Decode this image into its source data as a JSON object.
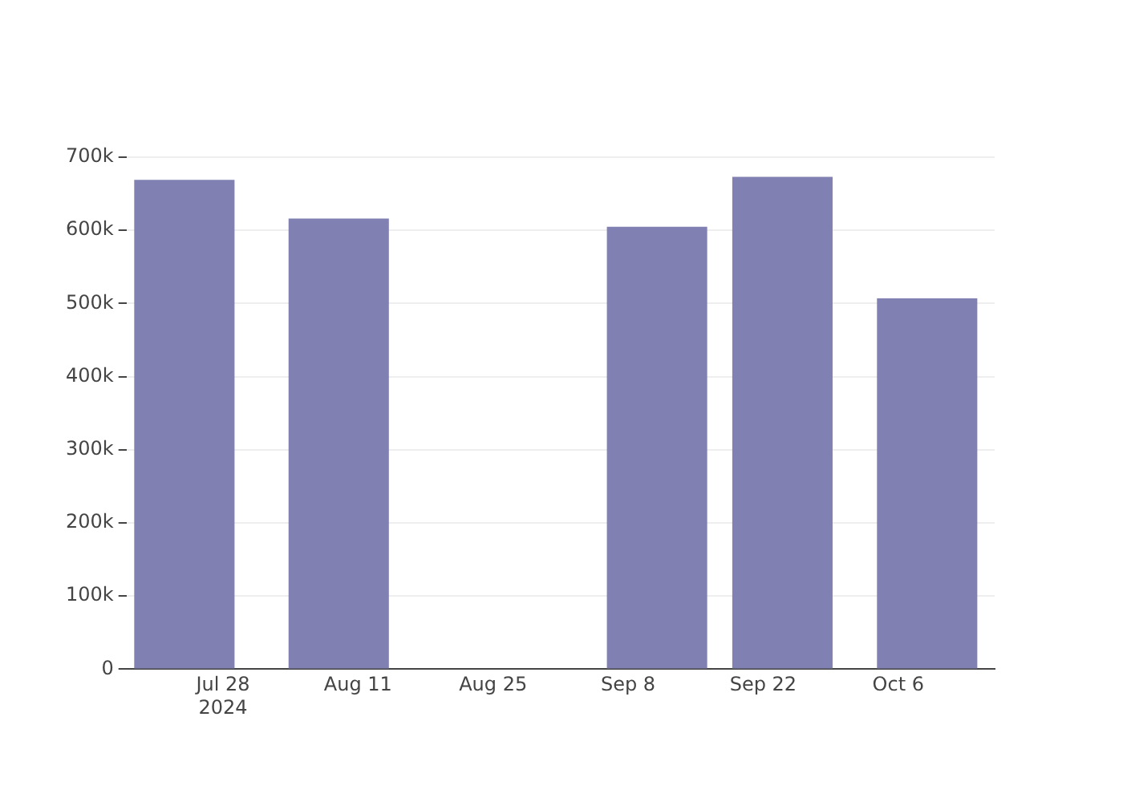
{
  "chart_data": {
    "type": "bar",
    "x": [
      "2024-07-24",
      "2024-08-09",
      "2024-09-11",
      "2024-09-24",
      "2024-10-09"
    ],
    "values": [
      669000,
      616000,
      605000,
      673000,
      507000
    ],
    "color": "#8080b2",
    "xlim": [
      "2024-07-18",
      "2024-10-16"
    ],
    "xticks": [
      {
        "value": "2024-07-28",
        "label": "Jul 28\n2024"
      },
      {
        "value": "2024-08-11",
        "label": "Aug 11"
      },
      {
        "value": "2024-08-25",
        "label": "Aug 25"
      },
      {
        "value": "2024-09-08",
        "label": "Sep 8"
      },
      {
        "value": "2024-09-22",
        "label": "Sep 22"
      },
      {
        "value": "2024-10-06",
        "label": "Oct 6"
      }
    ],
    "ylim": [
      0,
      700000
    ],
    "yticks": [
      {
        "value": 0,
        "label": "0"
      },
      {
        "value": 100000,
        "label": "100k"
      },
      {
        "value": 200000,
        "label": "200k"
      },
      {
        "value": 300000,
        "label": "300k"
      },
      {
        "value": 400000,
        "label": "400k"
      },
      {
        "value": 500000,
        "label": "500k"
      },
      {
        "value": 600000,
        "label": "600k"
      },
      {
        "value": 700000,
        "label": "700k"
      }
    ],
    "grid": "y"
  }
}
